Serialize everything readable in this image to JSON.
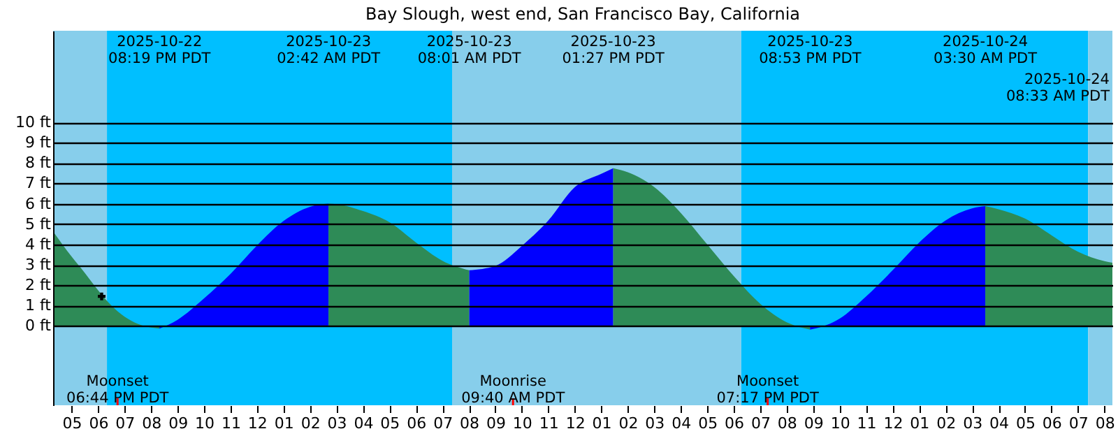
{
  "chart_data": {
    "type": "area",
    "title": "Bay Slough, west end, San Francisco Bay, California",
    "xlim": [
      "2025-10-22T16:18",
      "2025-10-24T08:18"
    ],
    "ylim": [
      -3.9,
      14.5
    ],
    "xticks": [
      {
        "value": "2025-10-22T17:00",
        "label": "05"
      },
      {
        "value": "2025-10-22T18:00",
        "label": "06"
      },
      {
        "value": "2025-10-22T19:00",
        "label": "07"
      },
      {
        "value": "2025-10-22T20:00",
        "label": "08"
      },
      {
        "value": "2025-10-22T21:00",
        "label": "09"
      },
      {
        "value": "2025-10-22T22:00",
        "label": "10"
      },
      {
        "value": "2025-10-22T23:00",
        "label": "11"
      },
      {
        "value": "2025-10-23T00:00",
        "label": "12"
      },
      {
        "value": "2025-10-23T01:00",
        "label": "01"
      },
      {
        "value": "2025-10-23T02:00",
        "label": "02"
      },
      {
        "value": "2025-10-23T03:00",
        "label": "03"
      },
      {
        "value": "2025-10-23T04:00",
        "label": "04"
      },
      {
        "value": "2025-10-23T05:00",
        "label": "05"
      },
      {
        "value": "2025-10-23T06:00",
        "label": "06"
      },
      {
        "value": "2025-10-23T07:00",
        "label": "07"
      },
      {
        "value": "2025-10-23T08:00",
        "label": "08"
      },
      {
        "value": "2025-10-23T09:00",
        "label": "09"
      },
      {
        "value": "2025-10-23T10:00",
        "label": "10"
      },
      {
        "value": "2025-10-23T11:00",
        "label": "11"
      },
      {
        "value": "2025-10-23T12:00",
        "label": "12"
      },
      {
        "value": "2025-10-23T13:00",
        "label": "01"
      },
      {
        "value": "2025-10-23T14:00",
        "label": "02"
      },
      {
        "value": "2025-10-23T15:00",
        "label": "03"
      },
      {
        "value": "2025-10-23T16:00",
        "label": "04"
      },
      {
        "value": "2025-10-23T17:00",
        "label": "05"
      },
      {
        "value": "2025-10-23T18:00",
        "label": "06"
      },
      {
        "value": "2025-10-23T19:00",
        "label": "07"
      },
      {
        "value": "2025-10-23T20:00",
        "label": "08"
      },
      {
        "value": "2025-10-23T21:00",
        "label": "09"
      },
      {
        "value": "2025-10-23T22:00",
        "label": "10"
      },
      {
        "value": "2025-10-23T23:00",
        "label": "11"
      },
      {
        "value": "2025-10-24T00:00",
        "label": "12"
      },
      {
        "value": "2025-10-24T01:00",
        "label": "01"
      },
      {
        "value": "2025-10-24T02:00",
        "label": "02"
      },
      {
        "value": "2025-10-24T03:00",
        "label": "03"
      },
      {
        "value": "2025-10-24T04:00",
        "label": "04"
      },
      {
        "value": "2025-10-24T05:00",
        "label": "05"
      },
      {
        "value": "2025-10-24T06:00",
        "label": "06"
      },
      {
        "value": "2025-10-24T07:00",
        "label": "07"
      },
      {
        "value": "2025-10-24T08:00",
        "label": "08"
      }
    ],
    "yticks": [
      {
        "value": 0,
        "label": "0 ft"
      },
      {
        "value": 1,
        "label": "1 ft"
      },
      {
        "value": 2,
        "label": "2 ft"
      },
      {
        "value": 3,
        "label": "3 ft"
      },
      {
        "value": 4,
        "label": "4 ft"
      },
      {
        "value": 5,
        "label": "5 ft"
      },
      {
        "value": 6,
        "label": "6 ft"
      },
      {
        "value": 7,
        "label": "7 ft"
      },
      {
        "value": 8,
        "label": "8 ft"
      },
      {
        "value": 9,
        "label": "9 ft"
      },
      {
        "value": 10,
        "label": "10 ft"
      }
    ],
    "grid": "y",
    "bands": [
      {
        "axis": "x",
        "from": "2025-10-22T16:18",
        "to": "2025-10-22T18:20",
        "color": "#87ceeb"
      },
      {
        "axis": "x",
        "from": "2025-10-22T18:20",
        "to": "2025-10-23T07:22",
        "color": "#00bfff"
      },
      {
        "axis": "x",
        "from": "2025-10-23T07:22",
        "to": "2025-10-23T18:17",
        "color": "#87ceeb"
      },
      {
        "axis": "x",
        "from": "2025-10-23T18:17",
        "to": "2025-10-24T07:23",
        "color": "#00bfff"
      },
      {
        "axis": "x",
        "from": "2025-10-24T07:23",
        "to": "2025-10-24T08:18",
        "color": "#87ceeb"
      }
    ],
    "ref_lines": [
      {
        "axis": "x",
        "value": "2025-10-22T18:44",
        "label": "Moonset\n06:44 PM PDT",
        "color": "#ff0000"
      },
      {
        "axis": "x",
        "value": "2025-10-23T09:40",
        "label": "Moonrise\n09:40 AM PDT",
        "color": "#ff0000"
      },
      {
        "axis": "x",
        "value": "2025-10-23T19:17",
        "label": "Moonset\n07:17 PM PDT",
        "color": "#ff0000"
      }
    ],
    "series": [
      {
        "color": "#2e8b57",
        "x": [
          "2025-10-22T16:18",
          "2025-10-22T17:00",
          "2025-10-22T17:30",
          "2025-10-22T18:00",
          "2025-10-22T18:30",
          "2025-10-22T19:00",
          "2025-10-22T19:30",
          "2025-10-22T20:00",
          "2025-10-22T20:19"
        ],
        "values": [
          4.64,
          3.4,
          2.6,
          1.75,
          1.0,
          0.45,
          0.1,
          -0.08,
          -0.13
        ]
      },
      {
        "color": "#0000ff",
        "x": [
          "2025-10-22T20:19",
          "2025-10-22T21:00",
          "2025-10-22T22:00",
          "2025-10-22T23:00",
          "2025-10-23T00:00",
          "2025-10-23T01:00",
          "2025-10-23T02:00",
          "2025-10-23T02:42"
        ],
        "values": [
          -0.13,
          0.3,
          1.35,
          2.55,
          3.95,
          5.15,
          5.85,
          6.0
        ]
      },
      {
        "color": "#2e8b57",
        "x": [
          "2025-10-23T02:42",
          "2025-10-23T03:00",
          "2025-10-23T04:00",
          "2025-10-23T05:00",
          "2025-10-23T06:00",
          "2025-10-23T07:00",
          "2025-10-23T08:01"
        ],
        "values": [
          6.0,
          5.98,
          5.64,
          5.09,
          4.1,
          3.2,
          2.73
        ]
      },
      {
        "color": "#0000ff",
        "x": [
          "2025-10-23T08:01",
          "2025-10-23T09:00",
          "2025-10-23T10:00",
          "2025-10-23T11:00",
          "2025-10-23T12:00",
          "2025-10-23T13:00",
          "2025-10-23T13:27"
        ],
        "values": [
          2.73,
          2.95,
          3.93,
          5.18,
          6.82,
          7.47,
          7.75
        ]
      },
      {
        "color": "#2e8b57",
        "x": [
          "2025-10-23T13:27",
          "2025-10-23T14:00",
          "2025-10-23T15:00",
          "2025-10-23T16:00",
          "2025-10-23T17:00",
          "2025-10-23T18:00",
          "2025-10-23T19:00",
          "2025-10-23T20:00",
          "2025-10-23T20:53"
        ],
        "values": [
          7.75,
          7.55,
          6.82,
          5.55,
          4.0,
          2.45,
          1.09,
          0.18,
          -0.18
        ]
      },
      {
        "color": "#0000ff",
        "x": [
          "2025-10-23T20:53",
          "2025-10-23T21:00",
          "2025-10-23T22:00",
          "2025-10-23T23:00",
          "2025-10-24T00:00",
          "2025-10-24T01:00",
          "2025-10-24T02:00",
          "2025-10-24T03:00",
          "2025-10-24T03:30"
        ],
        "values": [
          -0.18,
          -0.15,
          0.36,
          1.45,
          2.73,
          4.09,
          5.18,
          5.77,
          5.88
        ]
      },
      {
        "color": "#2e8b57",
        "x": [
          "2025-10-24T03:30",
          "2025-10-24T04:00",
          "2025-10-24T05:00",
          "2025-10-24T06:00",
          "2025-10-24T07:00",
          "2025-10-24T08:00",
          "2025-10-24T08:18"
        ],
        "values": [
          5.88,
          5.73,
          5.27,
          4.45,
          3.64,
          3.18,
          3.1
        ]
      },
      {
        "type": "scatter",
        "color": "#000000",
        "marker": "cross",
        "x": [
          "2025-10-22T18:08"
        ],
        "values": [
          1.45
        ]
      }
    ],
    "annotations": [
      "2025-10-22\n08:19 PM PDT",
      "2025-10-23\n02:42 AM PDT",
      "2025-10-23\n08:01 AM PDT",
      "2025-10-23\n01:27 PM PDT",
      "2025-10-23\n08:53 PM PDT",
      "2025-10-24\n03:30 AM PDT",
      "2025-10-24\n08:33 AM PDT"
    ]
  }
}
